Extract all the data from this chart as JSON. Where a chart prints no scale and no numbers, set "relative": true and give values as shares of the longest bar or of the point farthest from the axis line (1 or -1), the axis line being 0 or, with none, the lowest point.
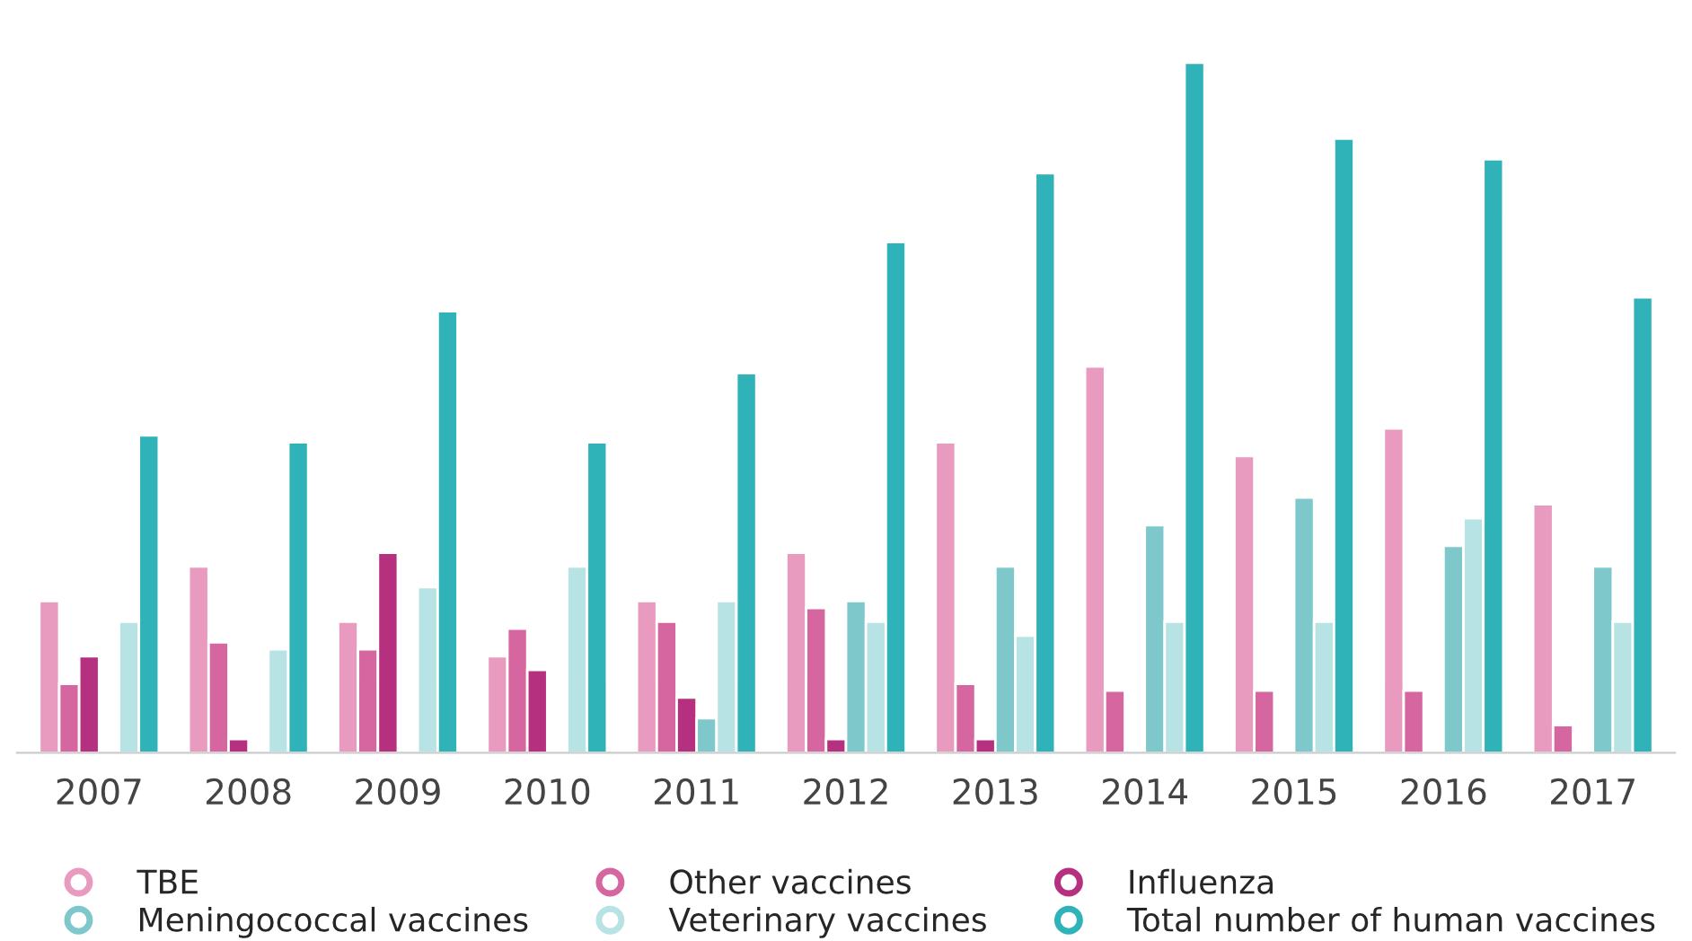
{
  "chart_data": {
    "type": "bar",
    "relative": true,
    "legend": "bottom",
    "marker": "circle",
    "categories": [
      "2007",
      "2008",
      "2009",
      "2010",
      "2011",
      "2012",
      "2013",
      "2014",
      "2015",
      "2016",
      "2017"
    ],
    "series": [
      {
        "name": "TBE",
        "color": "#e89bbf",
        "values": [
          0.22,
          0.27,
          0.19,
          0.14,
          0.22,
          0.29,
          0.45,
          0.56,
          0.43,
          0.47,
          0.36
        ]
      },
      {
        "name": "Other vaccines",
        "color": "#d666a0",
        "values": [
          0.1,
          0.16,
          0.15,
          0.18,
          0.19,
          0.21,
          0.1,
          0.09,
          0.09,
          0.09,
          0.04
        ]
      },
      {
        "name": "Influenza",
        "color": "#b5317f",
        "values": [
          0.14,
          0.02,
          0.29,
          0.12,
          0.08,
          0.02,
          0.02,
          null,
          null,
          null,
          null
        ]
      },
      {
        "name": "Meningococcal vaccines",
        "color": "#7ec8cc",
        "values": [
          null,
          null,
          null,
          null,
          0.05,
          0.22,
          0.27,
          0.33,
          0.37,
          0.3,
          0.27
        ]
      },
      {
        "name": "Veterinary vaccines",
        "color": "#b8e3e4",
        "values": [
          0.19,
          0.15,
          0.24,
          0.27,
          0.22,
          0.19,
          0.17,
          0.19,
          0.19,
          0.34,
          0.19
        ]
      },
      {
        "name": "Total number of human vaccines",
        "color": "#2fb3b8",
        "values": [
          0.46,
          0.45,
          0.64,
          0.45,
          0.55,
          0.74,
          0.84,
          1,
          0.89,
          0.86,
          0.66
        ]
      }
    ]
  }
}
